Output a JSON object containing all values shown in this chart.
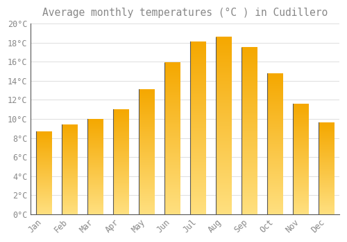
{
  "title": "Average monthly temperatures (°C ) in Cudillero",
  "months": [
    "Jan",
    "Feb",
    "Mar",
    "Apr",
    "May",
    "Jun",
    "Jul",
    "Aug",
    "Sep",
    "Oct",
    "Nov",
    "Dec"
  ],
  "values": [
    8.7,
    9.4,
    10.0,
    11.0,
    13.1,
    15.9,
    18.1,
    18.6,
    17.5,
    14.8,
    11.6,
    9.6
  ],
  "bar_color_bottom": "#F5A800",
  "bar_color_top": "#FFD966",
  "bar_edge_left": "#333333",
  "background_color": "#FFFFFF",
  "grid_color": "#DDDDDD",
  "text_color": "#888888",
  "ylim": [
    0,
    20
  ],
  "yticks": [
    0,
    2,
    4,
    6,
    8,
    10,
    12,
    14,
    16,
    18,
    20
  ],
  "ytick_labels": [
    "0°C",
    "2°C",
    "4°C",
    "6°C",
    "8°C",
    "10°C",
    "12°C",
    "14°C",
    "16°C",
    "18°C",
    "20°C"
  ],
  "title_fontsize": 10.5,
  "tick_fontsize": 8.5
}
